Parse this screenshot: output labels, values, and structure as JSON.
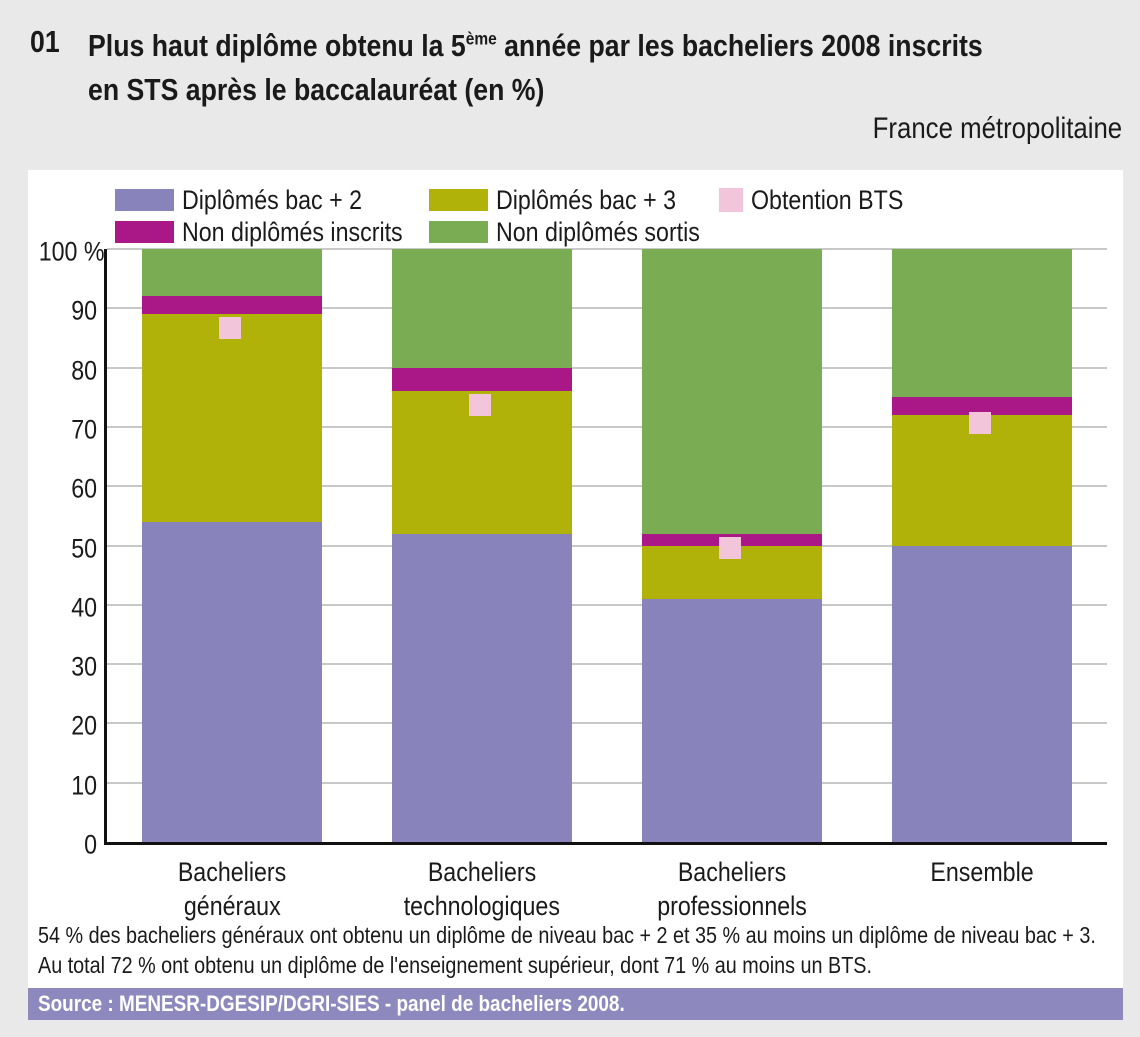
{
  "header": {
    "figure_number": "01",
    "title_line1": {
      "pre": "Plus haut diplôme obtenu la 5",
      "sup": "ème",
      "post": " année par les bacheliers 2008 inscrits"
    },
    "title_line2": "en STS après le baccalauréat (en %)",
    "region_note": "France métropolitaine"
  },
  "legend": {
    "rows": [
      [
        {
          "label": "Diplômés bac + 2",
          "color": "#8884bb",
          "shape": "rect"
        },
        {
          "label": "Diplômés bac + 3",
          "color": "#b0b20a",
          "shape": "rect"
        },
        {
          "label": "Obtention BTS",
          "color": "#f2c5db",
          "shape": "square"
        }
      ],
      [
        {
          "label": "Non diplômés inscrits",
          "color": "#aa1888",
          "shape": "rect"
        },
        {
          "label": "Non diplômés sortis",
          "color": "#7aac54",
          "shape": "rect"
        }
      ]
    ]
  },
  "chart_data": {
    "type": "bar",
    "stacked": true,
    "unit": "%",
    "categories": [
      "Bacheliers\ngénéraux",
      "Bacheliers\ntechnologiques",
      "Bacheliers\nprofessionnels",
      "Ensemble"
    ],
    "series": [
      {
        "name": "Diplômés bac + 2",
        "color": "#8884bb",
        "values": [
          54,
          52,
          41,
          50
        ]
      },
      {
        "name": "Diplômés bac + 3",
        "color": "#b0b20a",
        "values": [
          35,
          24,
          9,
          22
        ]
      },
      {
        "name": "Non diplômés inscrits",
        "color": "#aa1888",
        "values": [
          3,
          4,
          2,
          3
        ]
      },
      {
        "name": "Non diplômés sortis",
        "color": "#7aac54",
        "values": [
          8,
          20,
          48,
          25
        ]
      }
    ],
    "point_markers": {
      "name": "Obtention BTS",
      "color": "#f2c5db",
      "values": [
        87,
        74,
        50,
        71
      ]
    },
    "ylim": [
      0,
      100
    ],
    "y_tick_step": 10,
    "y_tick_labels": [
      "100 %",
      "90",
      "80",
      "70",
      "60",
      "50",
      "40",
      "30",
      "20",
      "10",
      "0"
    ],
    "grid": "horizontal",
    "legend_position": "top"
  },
  "footnote": {
    "line1": "54 % des bacheliers généraux ont obtenu un diplôme de niveau bac + 2 et 35 % au moins un diplôme de niveau bac + 3.",
    "line2": "Au total 72 % ont obtenu un diplôme de l'enseignement supérieur, dont 71 % au moins un BTS."
  },
  "source": {
    "text": "Source : MENESR-DGESIP/DGRI-SIES - panel de bacheliers 2008."
  }
}
